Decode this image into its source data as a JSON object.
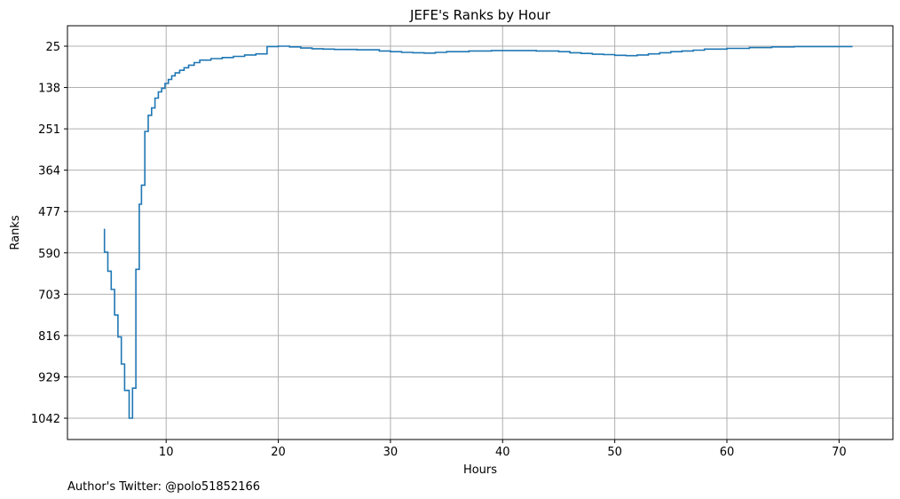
{
  "chart_data": {
    "type": "line",
    "title": "JEFE's Ranks by Hour",
    "xlabel": "Hours",
    "ylabel": "Ranks",
    "xlim": [
      1.2,
      74.8
    ],
    "ylim": [
      1042,
      25
    ],
    "y_inverted": true,
    "step": true,
    "grid": true,
    "line_color": "#1f77b4",
    "grid_color": "#b0b0b0",
    "x_ticks": [
      10,
      20,
      30,
      40,
      50,
      60,
      70
    ],
    "y_ticks": [
      25,
      138,
      251,
      364,
      477,
      590,
      703,
      816,
      929,
      1042
    ],
    "series": [
      {
        "x": [
          4.5,
          4.8,
          5.1,
          5.4,
          5.7,
          6.0,
          6.3,
          6.7,
          7.0,
          7.3,
          7.6,
          7.8,
          8.1,
          8.4,
          8.7,
          9.0,
          9.3,
          9.6,
          9.9,
          10.2,
          10.5,
          10.8,
          11.2,
          11.6,
          12.0,
          12.5,
          13.0,
          14.0,
          15.0,
          16.0,
          17.0,
          18.0,
          19.0,
          20.0,
          21.0,
          22.0,
          23.0,
          24.0,
          25.0,
          27.0,
          29.0,
          30.0,
          31.0,
          32.0,
          33.0,
          34.0,
          35.0,
          37.0,
          39.0,
          41.0,
          43.0,
          45.0,
          46.0,
          47.0,
          48.0,
          49.0,
          50.0,
          51.0,
          52.0,
          53.0,
          54.0,
          55.0,
          56.0,
          57.0,
          58.0,
          60.0,
          62.0,
          64.0,
          66.0,
          68.0,
          70.0,
          71.2
        ],
        "y": [
          524,
          588,
          640,
          690,
          760,
          820,
          894,
          966,
          1042,
          960,
          635,
          457,
          405,
          258,
          214,
          194,
          167,
          150,
          140,
          127,
          116,
          106,
          98,
          91,
          84,
          77,
          70,
          63,
          59,
          56,
          53,
          49,
          46,
          26,
          25,
          27,
          30,
          32,
          33,
          34,
          35,
          38,
          40,
          42,
          43,
          44,
          42,
          40,
          38,
          37,
          37,
          38,
          40,
          43,
          45,
          47,
          48,
          50,
          51,
          49,
          46,
          43,
          40,
          38,
          36,
          33,
          31,
          29,
          27,
          26,
          26,
          26
        ]
      }
    ]
  },
  "footer": {
    "credit": "Author's Twitter: @polo51852166"
  }
}
